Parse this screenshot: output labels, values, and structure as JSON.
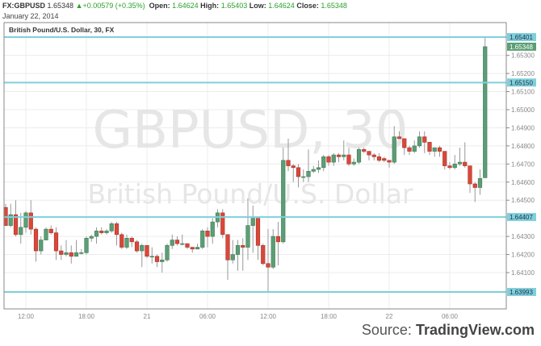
{
  "header": {
    "symbol": "FX:GBPUSD",
    "last": "1.65348",
    "change": "+0.00579 (+0.35%)",
    "open_label": "Open:",
    "open": "1.64624",
    "high_label": "High:",
    "high": "1.65403",
    "low_label": "Low:",
    "low": "1.64624",
    "close_label": "Close:",
    "close": "1.65348",
    "date": "January 22, 2014"
  },
  "footer": {
    "source_label": "Source:",
    "source_site": "TradingView.com"
  },
  "chart_data": {
    "type": "candlestick",
    "title": "British Pound/U.S. Dollar, 30, FX",
    "watermark_symbol": "GBPUSD, 30",
    "watermark_name": "British Pound/U.S. Dollar",
    "ylim": [
      1.6395,
      1.6542
    ],
    "grid": true,
    "colors": {
      "up": "#5b9e75",
      "down": "#d9483a",
      "level_line": "#7fcfdc",
      "last_price": "#5b9e75"
    },
    "y_ticks": [
      "1.65300",
      "1.65200",
      "1.65100",
      "1.65000",
      "1.64900",
      "1.64800",
      "1.64700",
      "1.64600",
      "1.64500",
      "1.64300",
      "1.64200",
      "1.64100"
    ],
    "x_ticks": [
      {
        "label": "12:00",
        "index": 4
      },
      {
        "label": "18:00",
        "index": 16
      },
      {
        "label": "21",
        "index": 28
      },
      {
        "label": "06:00",
        "index": 40
      },
      {
        "label": "12:00",
        "index": 52
      },
      {
        "label": "18:00",
        "index": 64
      },
      {
        "label": "22",
        "index": 76
      },
      {
        "label": "06:00",
        "index": 88
      }
    ],
    "levels": [
      "1.65401",
      "1.65150",
      "1.64407",
      "1.63993"
    ],
    "last_price_label": "1.65348",
    "ohlc": [
      [
        1.6446,
        1.6448,
        1.6436,
        1.6436
      ],
      [
        1.6436,
        1.6448,
        1.6435,
        1.6442
      ],
      [
        1.6442,
        1.645,
        1.643,
        1.6431
      ],
      [
        1.6431,
        1.6443,
        1.6426,
        1.6435
      ],
      [
        1.6435,
        1.6444,
        1.6432,
        1.6443
      ],
      [
        1.6443,
        1.645,
        1.6431,
        1.6434
      ],
      [
        1.6434,
        1.6435,
        1.6416,
        1.6422
      ],
      [
        1.6422,
        1.643,
        1.642,
        1.6428
      ],
      [
        1.6428,
        1.6435,
        1.6428,
        1.6434
      ],
      [
        1.6434,
        1.6436,
        1.6431,
        1.6432
      ],
      [
        1.6432,
        1.6435,
        1.6417,
        1.6422
      ],
      [
        1.6422,
        1.6425,
        1.6417,
        1.642
      ],
      [
        1.642,
        1.6428,
        1.6419,
        1.6421
      ],
      [
        1.6421,
        1.6425,
        1.6415,
        1.6419
      ],
      [
        1.6419,
        1.6428,
        1.6419,
        1.6421
      ],
      [
        1.6421,
        1.6423,
        1.642,
        1.6421
      ],
      [
        1.6421,
        1.643,
        1.642,
        1.6429
      ],
      [
        1.6429,
        1.6431,
        1.6427,
        1.643
      ],
      [
        1.643,
        1.6435,
        1.6426,
        1.6433
      ],
      [
        1.6433,
        1.6435,
        1.6431,
        1.6432
      ],
      [
        1.6432,
        1.6434,
        1.6431,
        1.6433
      ],
      [
        1.6433,
        1.6438,
        1.6432,
        1.6437
      ],
      [
        1.6437,
        1.6438,
        1.6425,
        1.6431
      ],
      [
        1.6431,
        1.6432,
        1.6423,
        1.6424
      ],
      [
        1.6424,
        1.6431,
        1.6423,
        1.6429
      ],
      [
        1.6429,
        1.643,
        1.6424,
        1.6427
      ],
      [
        1.6427,
        1.6428,
        1.6421,
        1.6422
      ],
      [
        1.6422,
        1.6426,
        1.6413,
        1.6425
      ],
      [
        1.6425,
        1.6425,
        1.6418,
        1.6419
      ],
      [
        1.6419,
        1.6424,
        1.6415,
        1.6419
      ],
      [
        1.6419,
        1.642,
        1.6413,
        1.6416
      ],
      [
        1.6416,
        1.6421,
        1.641,
        1.6417
      ],
      [
        1.6417,
        1.6426,
        1.6416,
        1.6425
      ],
      [
        1.6425,
        1.6431,
        1.6423,
        1.6428
      ],
      [
        1.6428,
        1.643,
        1.6425,
        1.6426
      ],
      [
        1.6426,
        1.6431,
        1.6425,
        1.6426
      ],
      [
        1.6426,
        1.6426,
        1.6423,
        1.6424
      ],
      [
        1.6424,
        1.6424,
        1.6421,
        1.6423
      ],
      [
        1.6423,
        1.6426,
        1.6423,
        1.6424
      ],
      [
        1.6424,
        1.6434,
        1.6423,
        1.6433
      ],
      [
        1.6433,
        1.6435,
        1.6424,
        1.643
      ],
      [
        1.643,
        1.644,
        1.6426,
        1.6438
      ],
      [
        1.6438,
        1.6445,
        1.6435,
        1.6443
      ],
      [
        1.6443,
        1.6445,
        1.6429,
        1.6431
      ],
      [
        1.6431,
        1.6431,
        1.6406,
        1.6417
      ],
      [
        1.6417,
        1.6428,
        1.6415,
        1.642
      ],
      [
        1.642,
        1.6428,
        1.6411,
        1.6425
      ],
      [
        1.6425,
        1.6429,
        1.6411,
        1.6424
      ],
      [
        1.6424,
        1.6451,
        1.6417,
        1.6436
      ],
      [
        1.6436,
        1.6447,
        1.6421,
        1.644
      ],
      [
        1.644,
        1.644,
        1.6417,
        1.6425
      ],
      [
        1.6425,
        1.6426,
        1.6414,
        1.6415
      ],
      [
        1.6415,
        1.6434,
        1.6399,
        1.6413
      ],
      [
        1.6413,
        1.6434,
        1.6412,
        1.643
      ],
      [
        1.643,
        1.6438,
        1.6414,
        1.6427
      ],
      [
        1.6427,
        1.6479,
        1.6426,
        1.6472
      ],
      [
        1.6472,
        1.6484,
        1.6466,
        1.6469
      ],
      [
        1.6469,
        1.647,
        1.646,
        1.6468
      ],
      [
        1.6468,
        1.647,
        1.6457,
        1.6463
      ],
      [
        1.6463,
        1.6467,
        1.646,
        1.6463
      ],
      [
        1.6463,
        1.6478,
        1.646,
        1.6466
      ],
      [
        1.6466,
        1.6469,
        1.6465,
        1.6467
      ],
      [
        1.6467,
        1.6472,
        1.6465,
        1.6468
      ],
      [
        1.6468,
        1.6475,
        1.6466,
        1.6474
      ],
      [
        1.6474,
        1.6475,
        1.6469,
        1.6471
      ],
      [
        1.6471,
        1.6476,
        1.6469,
        1.6475
      ],
      [
        1.6475,
        1.6476,
        1.6471,
        1.6474
      ],
      [
        1.6474,
        1.6483,
        1.6472,
        1.6475
      ],
      [
        1.6475,
        1.6479,
        1.6469,
        1.647
      ],
      [
        1.647,
        1.6473,
        1.6469,
        1.6471
      ],
      [
        1.6471,
        1.6479,
        1.647,
        1.6478
      ],
      [
        1.6478,
        1.6479,
        1.6476,
        1.6477
      ],
      [
        1.6477,
        1.6477,
        1.6472,
        1.6475
      ],
      [
        1.6475,
        1.6476,
        1.6472,
        1.6474
      ],
      [
        1.6474,
        1.6476,
        1.6471,
        1.6472
      ],
      [
        1.6473,
        1.6474,
        1.6471,
        1.6472
      ],
      [
        1.6472,
        1.6472,
        1.6468,
        1.6471
      ],
      [
        1.6471,
        1.6491,
        1.647,
        1.6485
      ],
      [
        1.6485,
        1.6488,
        1.6484,
        1.6484
      ],
      [
        1.6484,
        1.6484,
        1.6475,
        1.6479
      ],
      [
        1.6479,
        1.648,
        1.6475,
        1.6477
      ],
      [
        1.6477,
        1.6483,
        1.6476,
        1.648
      ],
      [
        1.648,
        1.6488,
        1.6479,
        1.6485
      ],
      [
        1.6485,
        1.6488,
        1.6476,
        1.6482
      ],
      [
        1.6482,
        1.6482,
        1.6475,
        1.6477
      ],
      [
        1.6477,
        1.6479,
        1.6474,
        1.6479
      ],
      [
        1.6479,
        1.648,
        1.6474,
        1.6477
      ],
      [
        1.6477,
        1.6477,
        1.6467,
        1.6469
      ],
      [
        1.6469,
        1.6471,
        1.6467,
        1.6468
      ],
      [
        1.6468,
        1.6475,
        1.6467,
        1.647
      ],
      [
        1.647,
        1.6479,
        1.6469,
        1.6471
      ],
      [
        1.6471,
        1.6482,
        1.6468,
        1.6469
      ],
      [
        1.6469,
        1.6469,
        1.6454,
        1.6459
      ],
      [
        1.6459,
        1.646,
        1.6449,
        1.6457
      ],
      [
        1.6457,
        1.6467,
        1.6453,
        1.6462
      ],
      [
        1.64624,
        1.65403,
        1.64624,
        1.65348
      ]
    ]
  }
}
